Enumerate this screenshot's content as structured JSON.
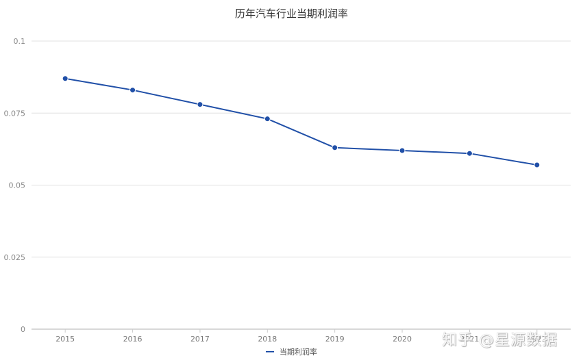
{
  "chart_data": {
    "type": "line",
    "title": "历年汽车行业当期利润率",
    "xlabel": "",
    "ylabel": "",
    "categories": [
      "2015",
      "2016",
      "2017",
      "2018",
      "2019",
      "2020",
      "2021",
      "2022"
    ],
    "series": [
      {
        "name": "当期利润率",
        "values": [
          0.087,
          0.083,
          0.078,
          0.073,
          0.063,
          0.062,
          0.061,
          0.057
        ],
        "color": "#2150a8"
      }
    ],
    "ylim": [
      0,
      0.1
    ],
    "yticks": [
      "0",
      "0.025",
      "0.05",
      "0.075",
      "0.1"
    ],
    "grid": true,
    "legend_position": "bottom"
  },
  "legend": {
    "label": "当期利润率"
  },
  "watermark": {
    "text": "知乎 @星源数据"
  },
  "colors": {
    "line": "#2150a8",
    "grid": "#e0e0e0",
    "axis": "#cccccc"
  }
}
